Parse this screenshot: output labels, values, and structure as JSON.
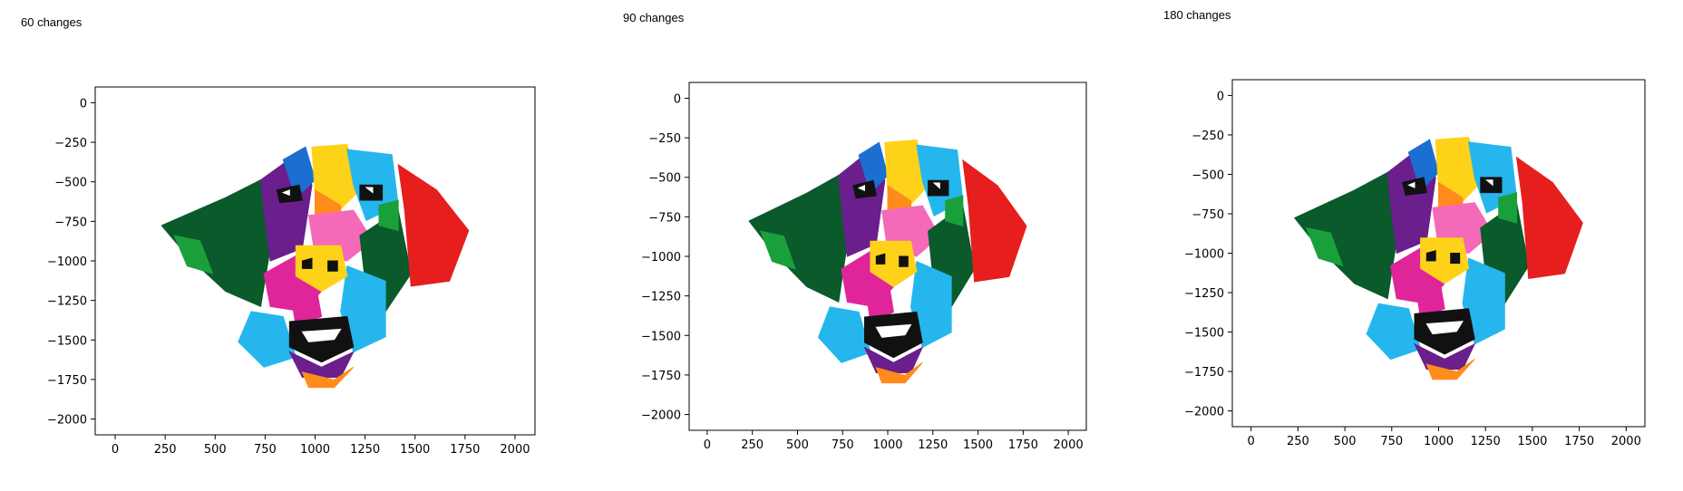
{
  "panels": [
    {
      "title": "60 changes"
    },
    {
      "title": "90 changes"
    },
    {
      "title": "180 changes"
    }
  ],
  "chart_data": [
    {
      "type": "image",
      "title": "60 changes",
      "xlim": [
        -100,
        2100
      ],
      "ylim": [
        -2100,
        100
      ],
      "xticks": [
        0,
        250,
        500,
        750,
        1000,
        1250,
        1500,
        1750,
        2000
      ],
      "yticks": [
        0,
        -250,
        -500,
        -750,
        -1000,
        -1250,
        -1500,
        -1750,
        -2000
      ],
      "grid": false,
      "image_extent": {
        "x": [
          200,
          1800
        ],
        "y": [
          -1800,
          -200
        ]
      }
    },
    {
      "type": "image",
      "title": "90 changes",
      "xlim": [
        -100,
        2100
      ],
      "ylim": [
        -2100,
        100
      ],
      "xticks": [
        0,
        250,
        500,
        750,
        1000,
        1250,
        1500,
        1750,
        2000
      ],
      "yticks": [
        0,
        -250,
        -500,
        -750,
        -1000,
        -1250,
        -1500,
        -1750,
        -2000
      ],
      "grid": false,
      "image_extent": {
        "x": [
          200,
          1800
        ],
        "y": [
          -1800,
          -200
        ]
      }
    },
    {
      "type": "image",
      "title": "180 changes",
      "xlim": [
        -100,
        2100
      ],
      "ylim": [
        -2100,
        100
      ],
      "xticks": [
        0,
        250,
        500,
        750,
        1000,
        1250,
        1500,
        1750,
        2000
      ],
      "yticks": [
        0,
        -250,
        -500,
        -750,
        -1000,
        -1250,
        -1500,
        -1750,
        -2000
      ],
      "grid": false,
      "image_extent": {
        "x": [
          200,
          1800
        ],
        "y": [
          -1800,
          -200
        ]
      }
    }
  ],
  "palette": {
    "dark_green": "#0a5a2c",
    "green": "#1aa03a",
    "purple": "#6a1f8c",
    "magenta": "#e0259a",
    "pink": "#f56ab8",
    "yellow": "#ffd21a",
    "orange": "#ff8c1a",
    "red": "#e61e1e",
    "light_blue": "#25b6ee",
    "blue": "#1b6fd1",
    "black": "#111111",
    "white": "#ffffff"
  }
}
